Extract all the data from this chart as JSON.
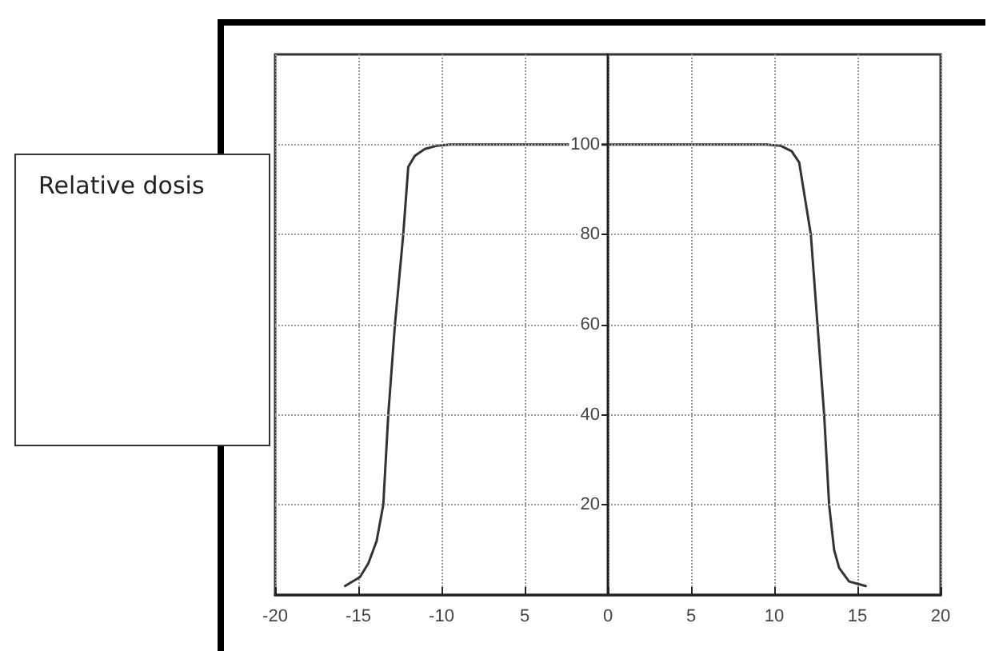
{
  "chart_data": {
    "type": "line",
    "ylabel": "Relative dosis",
    "x": [
      -15.8,
      -14.9,
      -14.4,
      -13.9,
      -13.5,
      -13.2,
      -12.8,
      -12.3,
      -12.0,
      -11.6,
      -11.0,
      -10.3,
      -9.5,
      -5,
      0,
      5,
      9.5,
      10.4,
      11.05,
      11.5,
      12.2,
      12.6,
      13.0,
      13.3,
      13.6,
      13.9,
      14.5,
      15.5
    ],
    "series": [
      {
        "color": "#333333",
        "values": [
          2,
          4,
          7,
          12,
          20,
          40,
          60,
          80,
          95,
          97.5,
          99,
          99.7,
          100,
          100,
          100,
          100,
          100,
          99.7,
          98.5,
          96,
          80,
          60,
          40,
          20,
          10,
          6,
          3,
          2
        ]
      }
    ],
    "xlim": [
      -20,
      20
    ],
    "xticks": [
      -20,
      -15,
      -10,
      {
        "value": -5,
        "label": "5"
      },
      0,
      5,
      10,
      15,
      20
    ],
    "ylim": [
      0,
      120
    ],
    "yticks": [
      20,
      40,
      60,
      80,
      100
    ],
    "grid": true,
    "marker": "none",
    "line_style": "solid"
  }
}
